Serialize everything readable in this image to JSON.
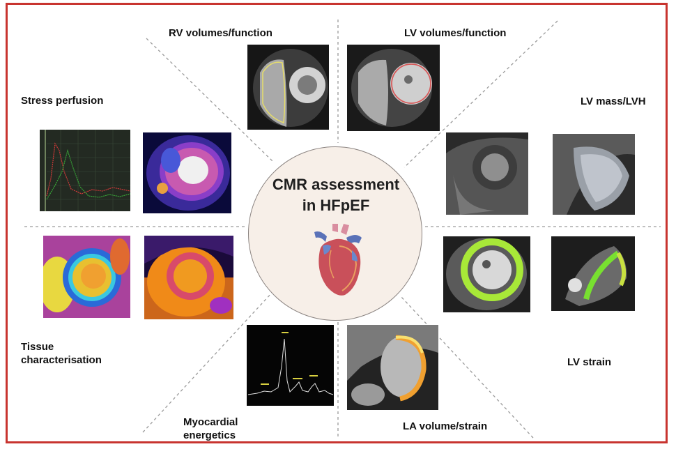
{
  "center": {
    "title_line1": "CMR assessment",
    "title_line2": "in HFpEF"
  },
  "sections": {
    "rv": "RV volumes/function",
    "lv_volumes": "LV  volumes/function",
    "lv_mass": "LV mass/LVH",
    "lv_strain": "LV strain",
    "la": "LA volume/strain",
    "energetics_line1": "Myocardial",
    "energetics_line2": "energetics",
    "tissue_line1": "Tissue",
    "tissue_line2": "characterisation",
    "stress": "Stress perfusion"
  },
  "colors": {
    "frame": "#c8342f",
    "center_fill": "#f7efe8",
    "divider": "#9a9a9a"
  },
  "icons": {
    "center": "heart-icon"
  }
}
